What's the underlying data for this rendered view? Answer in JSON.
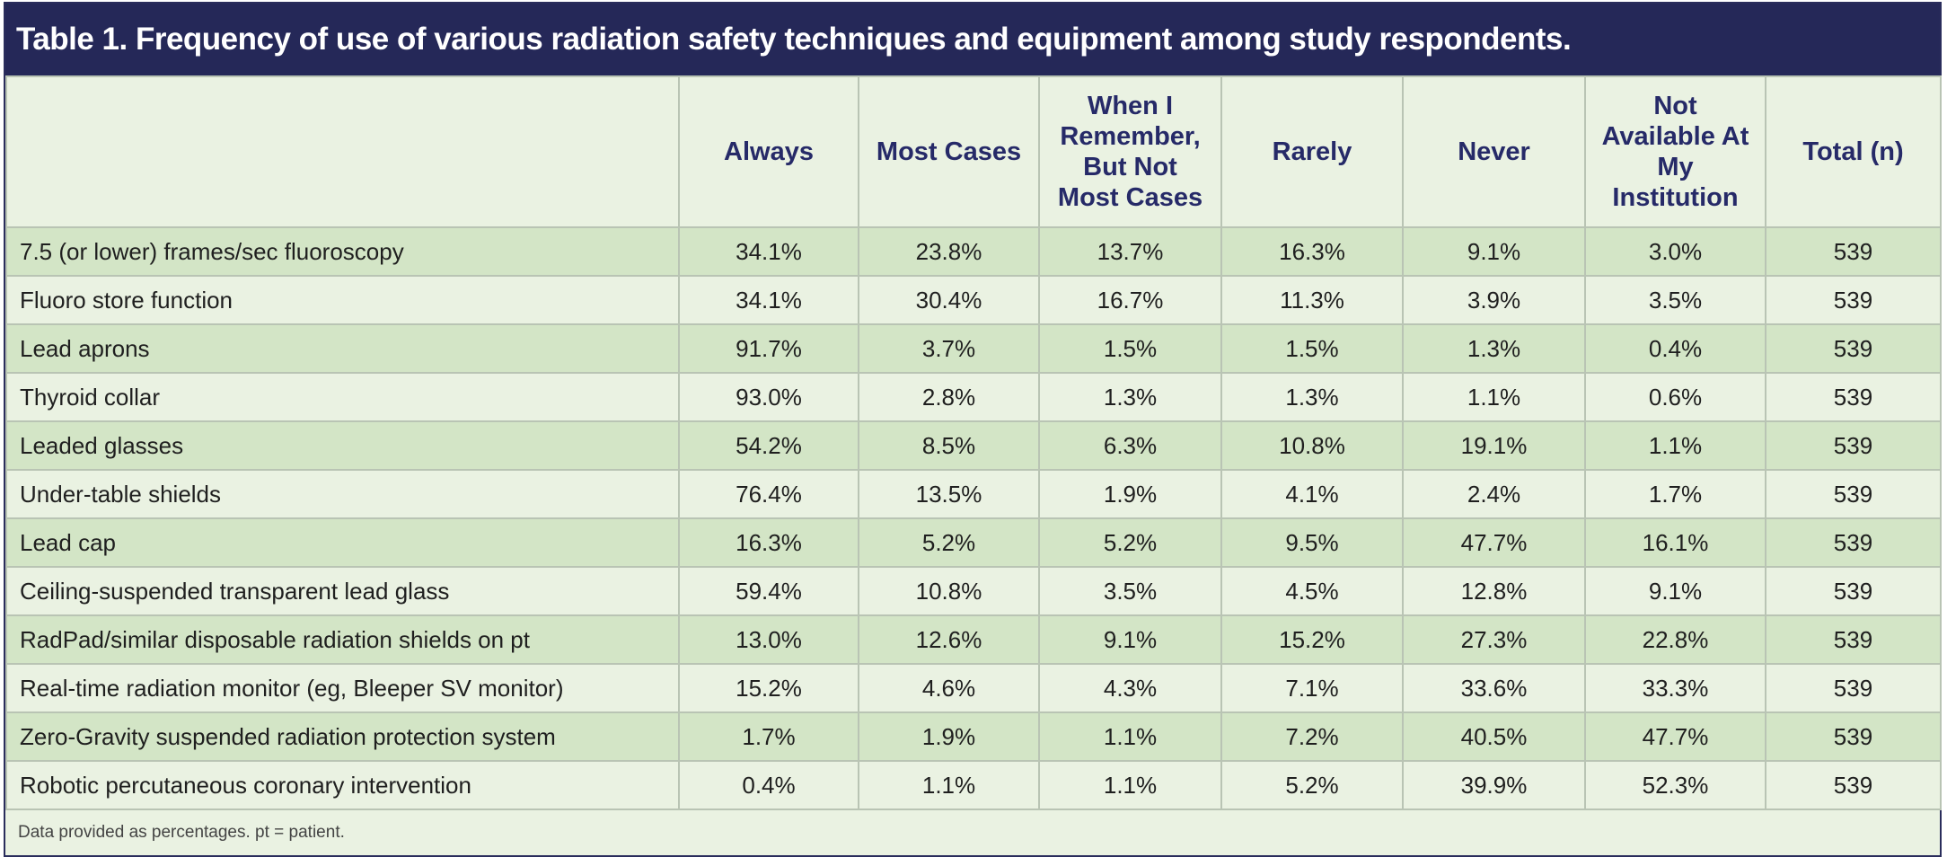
{
  "title": "Table 1. Frequency of use of various radiation safety techniques and equipment among study respondents.",
  "table": {
    "columns": [
      "",
      "Always",
      "Most Cases",
      "When I Remember, But Not Most Cases",
      "Rarely",
      "Never",
      "Not Available At My Institution",
      "Total (n)"
    ],
    "rows": [
      [
        "7.5 (or lower) frames/sec fluoroscopy",
        "34.1%",
        "23.8%",
        "13.7%",
        "16.3%",
        "9.1%",
        "3.0%",
        "539"
      ],
      [
        "Fluoro store function",
        "34.1%",
        "30.4%",
        "16.7%",
        "11.3%",
        "3.9%",
        "3.5%",
        "539"
      ],
      [
        "Lead aprons",
        "91.7%",
        "3.7%",
        "1.5%",
        "1.5%",
        "1.3%",
        "0.4%",
        "539"
      ],
      [
        "Thyroid collar",
        "93.0%",
        "2.8%",
        "1.3%",
        "1.3%",
        "1.1%",
        "0.6%",
        "539"
      ],
      [
        "Leaded glasses",
        "54.2%",
        "8.5%",
        "6.3%",
        "10.8%",
        "19.1%",
        "1.1%",
        "539"
      ],
      [
        "Under-table shields",
        "76.4%",
        "13.5%",
        "1.9%",
        "4.1%",
        "2.4%",
        "1.7%",
        "539"
      ],
      [
        "Lead cap",
        "16.3%",
        "5.2%",
        "5.2%",
        "9.5%",
        "47.7%",
        "16.1%",
        "539"
      ],
      [
        "Ceiling-suspended transparent lead glass",
        "59.4%",
        "10.8%",
        "3.5%",
        "4.5%",
        "12.8%",
        "9.1%",
        "539"
      ],
      [
        "RadPad/similar disposable radiation shields on pt",
        "13.0%",
        "12.6%",
        "9.1%",
        "15.2%",
        "27.3%",
        "22.8%",
        "539"
      ],
      [
        "Real-time radiation monitor (eg, Bleeper SV monitor)",
        "15.2%",
        "4.6%",
        "4.3%",
        "7.1%",
        "33.6%",
        "33.3%",
        "539"
      ],
      [
        "Zero-Gravity suspended radiation protection system",
        "1.7%",
        "1.9%",
        "1.1%",
        "7.2%",
        "40.5%",
        "47.7%",
        "539"
      ],
      [
        "Robotic percutaneous coronary intervention",
        "0.4%",
        "1.1%",
        "1.1%",
        "5.2%",
        "39.9%",
        "52.3%",
        "539"
      ]
    ],
    "footnote": "Data provided as percentages. pt = patient."
  }
}
